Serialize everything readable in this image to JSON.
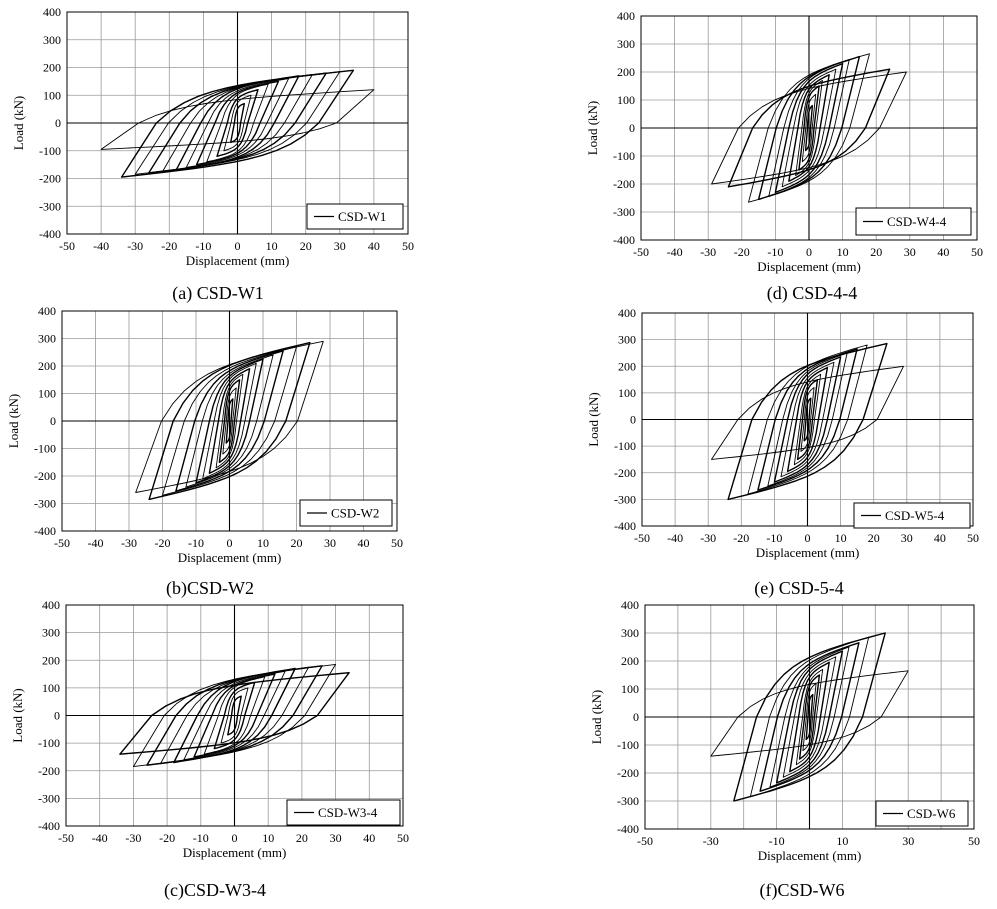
{
  "chart_data": [
    {
      "id": "a",
      "type": "line",
      "ylabel": "Load (kN)",
      "xlabel": "Displacement (mm)",
      "xlim": [
        -50,
        50
      ],
      "ylim": [
        -400,
        400
      ],
      "xticks": [
        -50,
        -40,
        -30,
        -20,
        -10,
        0,
        10,
        20,
        30,
        40,
        50
      ],
      "yticks": [
        400,
        300,
        200,
        100,
        0,
        -100,
        -200,
        -300,
        -400
      ],
      "grid": true,
      "legend_position": "bottom-right",
      "series": [
        {
          "name": "CSD-W1",
          "style": "hysteresis",
          "peak_displacement": [
            2,
            4,
            6,
            9,
            12,
            15,
            18,
            22,
            26,
            30,
            34,
            40
          ],
          "peak_load_positive": [
            70,
            100,
            120,
            140,
            150,
            160,
            170,
            175,
            180,
            185,
            190,
            120
          ],
          "min_displacement": [
            -2,
            -4,
            -6,
            -9,
            -12,
            -15,
            -18,
            -22,
            -26,
            -30,
            -34,
            -40
          ],
          "peak_load_negative": [
            -70,
            -100,
            -120,
            -140,
            -150,
            -160,
            -170,
            -175,
            -180,
            -185,
            -195,
            -95
          ]
        }
      ],
      "caption": "(a) CSD-W1"
    },
    {
      "id": "d",
      "type": "line",
      "ylabel": "Load (kN)",
      "xlabel": "Displacement (mm)",
      "xlim": [
        -50,
        50
      ],
      "ylim": [
        -400,
        400
      ],
      "xticks": [
        -50,
        -40,
        -30,
        -20,
        -10,
        0,
        10,
        20,
        30,
        40,
        50
      ],
      "yticks": [
        400,
        300,
        200,
        100,
        0,
        -100,
        -200,
        -300,
        -400
      ],
      "grid": true,
      "legend_position": "bottom-right",
      "series": [
        {
          "name": "CSD-W4-4",
          "style": "hysteresis",
          "peak_displacement": [
            1,
            2,
            3,
            4,
            6,
            8,
            10,
            12,
            15,
            18,
            24,
            29
          ],
          "peak_load_positive": [
            80,
            120,
            150,
            170,
            190,
            210,
            230,
            245,
            255,
            265,
            210,
            200
          ],
          "min_displacement": [
            -1,
            -2,
            -3,
            -4,
            -6,
            -8,
            -10,
            -12,
            -15,
            -18,
            -24,
            -29
          ],
          "peak_load_negative": [
            -80,
            -120,
            -150,
            -170,
            -190,
            -210,
            -230,
            -245,
            -255,
            -265,
            -210,
            -200
          ]
        }
      ],
      "caption": "(d) CSD-4-4"
    },
    {
      "id": "b",
      "type": "line",
      "ylabel": "Load (kN)",
      "xlabel": "Displacement (mm)",
      "xlim": [
        -50,
        50
      ],
      "ylim": [
        -400,
        400
      ],
      "xticks": [
        -50,
        -40,
        -30,
        -20,
        -10,
        0,
        10,
        20,
        30,
        40,
        50
      ],
      "yticks": [
        400,
        300,
        200,
        100,
        0,
        -100,
        -200,
        -300,
        -400
      ],
      "grid": true,
      "legend_position": "bottom-right",
      "series": [
        {
          "name": "CSD-W2",
          "style": "hysteresis",
          "peak_displacement": [
            1,
            2,
            3,
            4,
            6,
            8,
            10,
            13,
            16,
            20,
            24,
            28
          ],
          "peak_load_positive": [
            80,
            120,
            150,
            170,
            190,
            210,
            225,
            240,
            255,
            270,
            285,
            290
          ],
          "min_displacement": [
            -1,
            -2,
            -3,
            -4,
            -6,
            -8,
            -10,
            -13,
            -16,
            -20,
            -24,
            -28
          ],
          "peak_load_negative": [
            -80,
            -120,
            -150,
            -170,
            -190,
            -210,
            -225,
            -240,
            -255,
            -270,
            -285,
            -260
          ]
        }
      ],
      "caption": "(b)CSD-W2"
    },
    {
      "id": "e",
      "type": "line",
      "ylabel": "Load (kN)",
      "xlabel": "Displacement (mm)",
      "xlim": [
        -50,
        50
      ],
      "ylim": [
        -400,
        400
      ],
      "xticks": [
        -50,
        -40,
        -30,
        -20,
        -10,
        0,
        10,
        20,
        30,
        40,
        50
      ],
      "yticks": [
        400,
        300,
        200,
        100,
        0,
        -100,
        -200,
        -300,
        -400
      ],
      "grid": true,
      "legend_position": "bottom-right",
      "series": [
        {
          "name": "CSD-W5-4",
          "style": "hysteresis",
          "peak_displacement": [
            1,
            2,
            3,
            4,
            6,
            8,
            10,
            12,
            15,
            18,
            24,
            29
          ],
          "peak_load_positive": [
            80,
            120,
            150,
            170,
            195,
            215,
            235,
            250,
            265,
            280,
            285,
            200
          ],
          "min_displacement": [
            -1,
            -2,
            -3,
            -4,
            -6,
            -8,
            -10,
            -12,
            -15,
            -18,
            -24,
            -29
          ],
          "peak_load_negative": [
            -80,
            -120,
            -150,
            -170,
            -195,
            -215,
            -235,
            -250,
            -265,
            -280,
            -300,
            -150
          ]
        }
      ],
      "caption": "(e) CSD-5-4"
    },
    {
      "id": "c",
      "type": "line",
      "ylabel": "Load (kN)",
      "xlabel": "Displacement (mm)",
      "xlim": [
        -50,
        50
      ],
      "ylim": [
        -400,
        400
      ],
      "xticks": [
        -50,
        -40,
        -30,
        -20,
        -10,
        0,
        10,
        20,
        30,
        40,
        50
      ],
      "yticks": [
        400,
        300,
        200,
        100,
        0,
        -100,
        -200,
        -300,
        -400
      ],
      "grid": true,
      "legend_position": "bottom-right",
      "series": [
        {
          "name": "CSD-W3-4",
          "style": "hysteresis",
          "peak_displacement": [
            2,
            4,
            6,
            9,
            12,
            15,
            18,
            22,
            26,
            30,
            34
          ],
          "peak_load_positive": [
            70,
            100,
            120,
            140,
            150,
            160,
            170,
            175,
            180,
            185,
            155
          ],
          "min_displacement": [
            -2,
            -4,
            -6,
            -9,
            -12,
            -15,
            -18,
            -22,
            -26,
            -30,
            -34
          ],
          "peak_load_negative": [
            -70,
            -100,
            -120,
            -140,
            -150,
            -160,
            -170,
            -175,
            -180,
            -185,
            -140
          ]
        }
      ],
      "caption": "(c)CSD-W3-4"
    },
    {
      "id": "f",
      "type": "line",
      "ylabel": "Load (kN)",
      "xlabel": "Displacement (mm)",
      "xlim": [
        -50,
        50
      ],
      "ylim": [
        -400,
        400
      ],
      "xticks": [
        -50,
        -30,
        -10,
        10,
        30,
        50
      ],
      "yticks": [
        400,
        300,
        200,
        100,
        0,
        -100,
        -200,
        -300,
        -400
      ],
      "grid": true,
      "legend_position": "bottom-right",
      "series": [
        {
          "name": "CSD-W6",
          "style": "hysteresis",
          "peak_displacement": [
            1,
            2,
            3,
            4,
            6,
            8,
            10,
            12,
            15,
            18,
            23,
            30
          ],
          "peak_load_positive": [
            80,
            120,
            150,
            170,
            195,
            215,
            235,
            250,
            265,
            285,
            300,
            165
          ],
          "min_displacement": [
            -1,
            -2,
            -3,
            -4,
            -6,
            -8,
            -10,
            -12,
            -15,
            -18,
            -23,
            -30
          ],
          "peak_load_negative": [
            -80,
            -120,
            -150,
            -170,
            -195,
            -215,
            -235,
            -250,
            -265,
            -285,
            -300,
            -140
          ]
        }
      ],
      "caption": "(f)CSD-W6"
    }
  ]
}
